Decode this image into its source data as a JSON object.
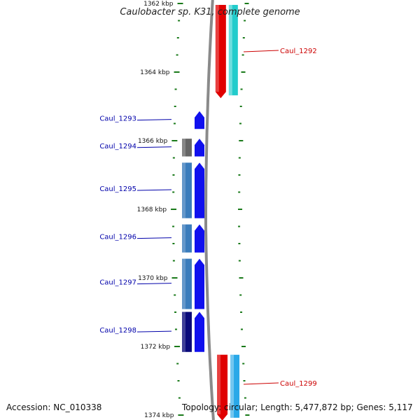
{
  "title": "Caulobacter sp. K31, complete genome",
  "accession": "Accession: NC_010338",
  "summary": "Topology: circular; Length: 5,477,872 bp; Genes: 5,117",
  "colors": {
    "backbone": "#8a8a8a",
    "tick_green": "#1a7a1a",
    "gene_forward": "#1010ee",
    "gene_reverse": "#e00000",
    "label_forward": "#0000aa",
    "label_reverse": "#cc0000"
  },
  "scale_ticks": [
    {
      "label": "1362 kbp",
      "kbp": 1362
    },
    {
      "label": "1364 kbp",
      "kbp": 1364
    },
    {
      "label": "1366 kbp",
      "kbp": 1366
    },
    {
      "label": "1368 kbp",
      "kbp": 1368
    },
    {
      "label": "1370 kbp",
      "kbp": 1370
    },
    {
      "label": "1372 kbp",
      "kbp": 1372
    },
    {
      "label": "1374 kbp",
      "kbp": 1374
    }
  ],
  "genes": [
    {
      "name": "Caul_1292",
      "strand": "reverse",
      "start_kbp": 1362.0,
      "end_kbp": 1364.8,
      "cog_color": "#22cccc"
    },
    {
      "name": "Caul_1293",
      "strand": "forward",
      "start_kbp": 1365.1,
      "end_kbp": 1365.7,
      "cog_color": null
    },
    {
      "name": "Caul_1294",
      "strand": "forward",
      "start_kbp": 1365.9,
      "end_kbp": 1366.5,
      "cog_color": "#666666"
    },
    {
      "name": "Caul_1295",
      "strand": "forward",
      "start_kbp": 1366.6,
      "end_kbp": 1368.3,
      "cog_color": "#3a7cbc"
    },
    {
      "name": "Caul_1296",
      "strand": "forward",
      "start_kbp": 1368.4,
      "end_kbp": 1369.3,
      "cog_color": "#3a7cbc"
    },
    {
      "name": "Caul_1297",
      "strand": "forward",
      "start_kbp": 1369.4,
      "end_kbp": 1370.95,
      "cog_color": "#3a7cbc"
    },
    {
      "name": "Caul_1298",
      "strand": "forward",
      "start_kbp": 1370.95,
      "end_kbp": 1372.2,
      "cog_color": "#0a0a7a"
    },
    {
      "name": "Caul_1299",
      "strand": "reverse",
      "start_kbp": 1372.2,
      "end_kbp": 1374.2,
      "cog_color": "#29a8e8"
    }
  ]
}
